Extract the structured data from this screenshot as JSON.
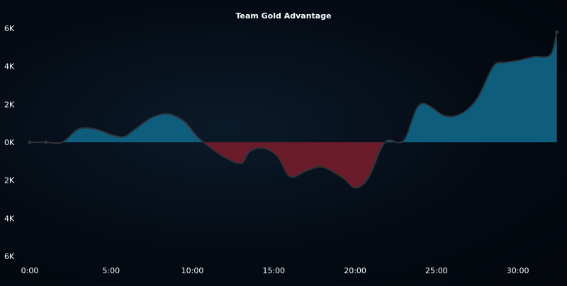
{
  "chart_data": {
    "type": "area",
    "title": "Team Gold Advantage",
    "xlabel": "",
    "ylabel": "",
    "x_ticks": [
      "0:00",
      "5:00",
      "10:00",
      "15:00",
      "20:00",
      "25:00",
      "30:00"
    ],
    "y_ticks": [
      "6K",
      "4K",
      "2K",
      "0K",
      "2K",
      "4K",
      "6K"
    ],
    "xlim": [
      0,
      32.5
    ],
    "ylim": [
      -6000,
      6000
    ],
    "grid": false,
    "colors": {
      "positive": "#0e5d7d",
      "negative": "#6b1c2a",
      "line": "#2f3338"
    },
    "series": [
      {
        "x": [
          0,
          1,
          2,
          3,
          4,
          5,
          5.8,
          6.5,
          7.5,
          8.5,
          9.5,
          10.3,
          11,
          12,
          13,
          13.5,
          14.3,
          15.2,
          16,
          17,
          18,
          19.3,
          20,
          20.8,
          21.5,
          22,
          23,
          24,
          25.5,
          26.5,
          27.5,
          28.5,
          29.2,
          30,
          31,
          32,
          32.4
        ],
        "y": [
          0,
          0,
          0,
          700,
          700,
          400,
          300,
          700,
          1300,
          1500,
          1100,
          300,
          -200,
          -800,
          -1100,
          -500,
          -300,
          -700,
          -1800,
          -1500,
          -1300,
          -1900,
          -2400,
          -1900,
          -500,
          100,
          100,
          2000,
          1400,
          1500,
          2300,
          4000,
          4200,
          4300,
          4500,
          4600,
          5800
        ]
      }
    ]
  }
}
